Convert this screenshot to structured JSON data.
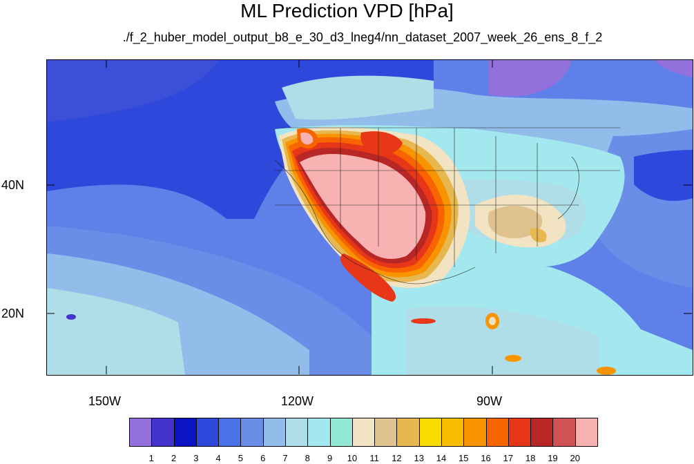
{
  "title": "ML Prediction VPD [hPa]",
  "subtitle": "./f_2_huber_model_output_b8_e_30_d3_lneg4/nn_dataset_2007_week_26_ens_8_f_2",
  "lat_labels": [
    "40N",
    "20N"
  ],
  "lon_labels": [
    "150W",
    "120W",
    "90W"
  ],
  "colorbar": {
    "labels": [
      "1",
      "2",
      "3",
      "4",
      "5",
      "6",
      "7",
      "8",
      "9",
      "10",
      "11",
      "12",
      "13",
      "14",
      "15",
      "16",
      "17",
      "18",
      "19",
      "20"
    ],
    "colors": [
      "#9370db",
      "#4433cc",
      "#0a14c4",
      "#2e48dc",
      "#4a72e8",
      "#6a8ee8",
      "#92bcea",
      "#b0dee8",
      "#a2e8ee",
      "#94e8d6",
      "#f2e4c2",
      "#e0c28e",
      "#e8b850",
      "#f8dc00",
      "#f8bc00",
      "#f89400",
      "#f86400",
      "#e83618",
      "#b82626",
      "#d05252",
      "#f8b2b2"
    ]
  },
  "map": {
    "region": "North Pacific and contiguous United States",
    "lat_range": [
      10,
      59
    ],
    "lon_range": [
      -160,
      -60
    ],
    "field": "VPD"
  }
}
